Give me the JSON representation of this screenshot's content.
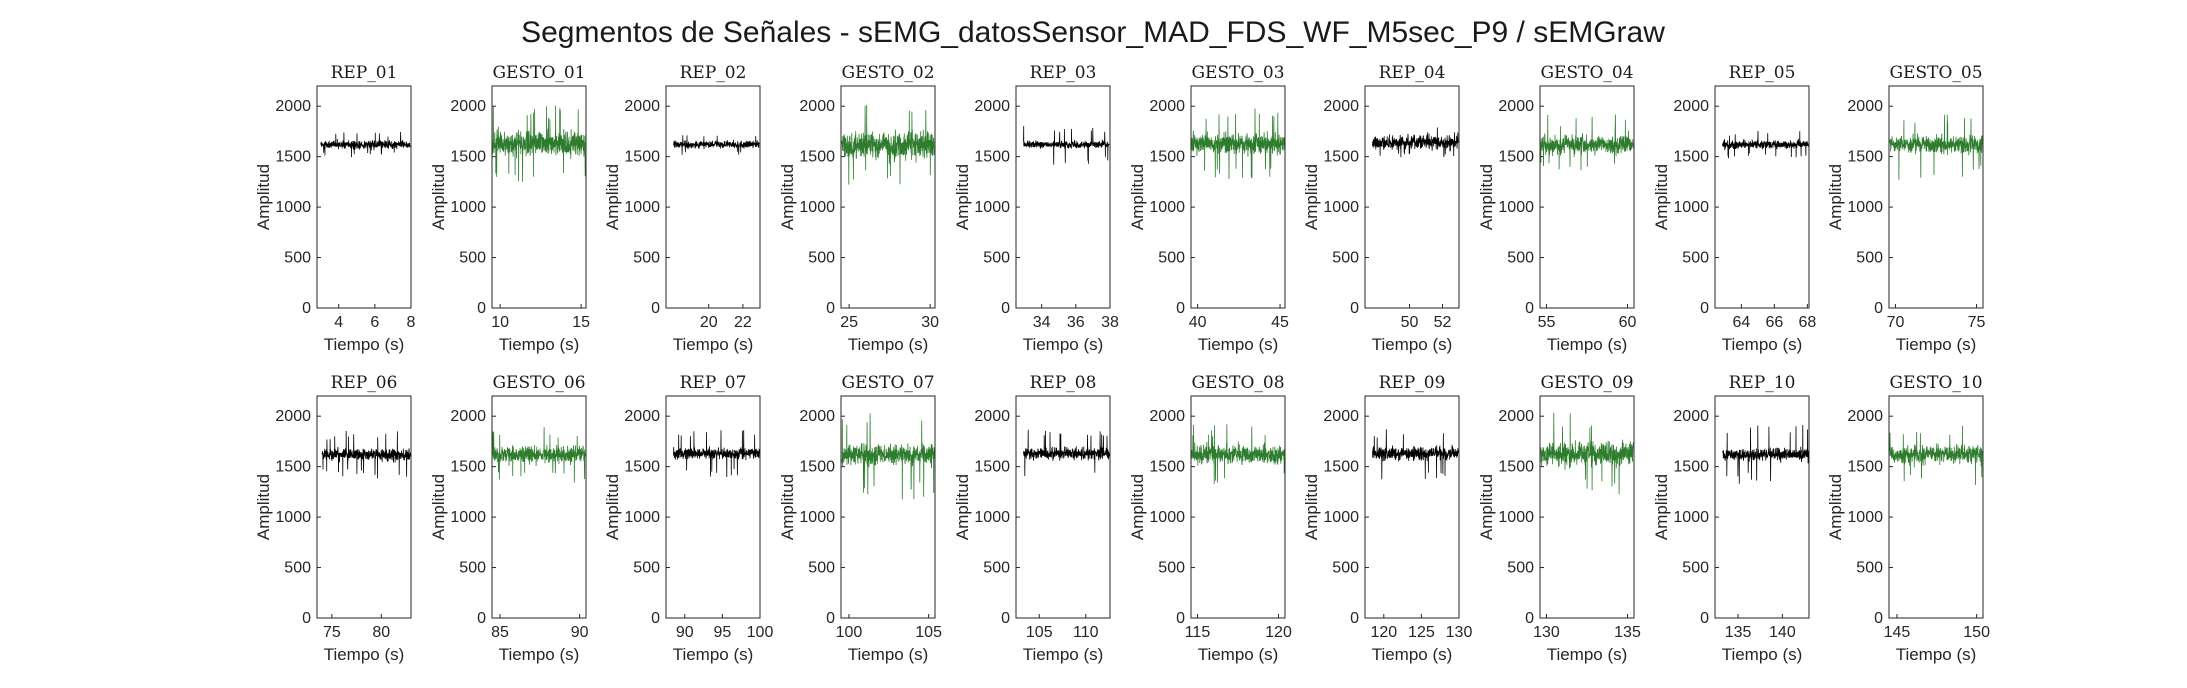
{
  "figure": {
    "title": "Segmentos de Señales - sEMG_datosSensor_MAD_FDS_WF_M5sec_P9 / sEMGraw"
  },
  "colors": {
    "rep": "#000000",
    "gesto": "#2e7d2e",
    "axis": "#262626"
  },
  "chart_data": [
    {
      "type": "line",
      "title": "REP_01",
      "kind": "rep",
      "xlim": [
        2.8,
        8
      ],
      "xticks": [
        4,
        6,
        8
      ],
      "ylim": [
        0,
        2200
      ],
      "yticks": [
        0,
        500,
        1000,
        1500,
        2000
      ],
      "xlabel": "Tiempo (s)",
      "ylabel": "Amplitud",
      "series": [
        {
          "center": 1620,
          "amp": 70,
          "spike": 130
        }
      ]
    },
    {
      "type": "line",
      "title": "GESTO_01",
      "kind": "gesto",
      "xlim": [
        9.5,
        15.3
      ],
      "xticks": [
        10,
        15
      ],
      "ylim": [
        0,
        2200
      ],
      "yticks": [
        0,
        500,
        1000,
        1500,
        2000
      ],
      "xlabel": "Tiempo (s)",
      "ylabel": "Amplitud",
      "series": [
        {
          "center": 1630,
          "amp": 200,
          "spike": 380
        }
      ]
    },
    {
      "type": "line",
      "title": "REP_02",
      "kind": "rep",
      "xlim": [
        17.5,
        23
      ],
      "xticks": [
        20,
        22
      ],
      "ylim": [
        0,
        2200
      ],
      "yticks": [
        0,
        500,
        1000,
        1500,
        2000
      ],
      "xlabel": "Tiempo (s)",
      "ylabel": "Amplitud",
      "series": [
        {
          "center": 1620,
          "amp": 60,
          "spike": 110
        }
      ]
    },
    {
      "type": "line",
      "title": "GESTO_02",
      "kind": "gesto",
      "xlim": [
        24.5,
        30.3
      ],
      "xticks": [
        25,
        30
      ],
      "ylim": [
        0,
        2200
      ],
      "yticks": [
        0,
        500,
        1000,
        1500,
        2000
      ],
      "xlabel": "Tiempo (s)",
      "ylabel": "Amplitud",
      "series": [
        {
          "center": 1620,
          "amp": 230,
          "spike": 400
        }
      ]
    },
    {
      "type": "line",
      "title": "REP_03",
      "kind": "rep",
      "xlim": [
        32.5,
        38
      ],
      "xticks": [
        34,
        36,
        38
      ],
      "ylim": [
        0,
        2200
      ],
      "yticks": [
        0,
        500,
        1000,
        1500,
        2000
      ],
      "xlabel": "Tiempo (s)",
      "ylabel": "Amplitud",
      "series": [
        {
          "center": 1620,
          "amp": 60,
          "spike": 200
        }
      ]
    },
    {
      "type": "line",
      "title": "GESTO_03",
      "kind": "gesto",
      "xlim": [
        39.6,
        45.3
      ],
      "xticks": [
        40,
        45
      ],
      "ylim": [
        0,
        2200
      ],
      "yticks": [
        0,
        500,
        1000,
        1500,
        2000
      ],
      "xlabel": "Tiempo (s)",
      "ylabel": "Amplitud",
      "series": [
        {
          "center": 1630,
          "amp": 160,
          "spike": 380
        }
      ]
    },
    {
      "type": "line",
      "title": "REP_04",
      "kind": "rep",
      "xlim": [
        47.3,
        53
      ],
      "xticks": [
        50,
        52
      ],
      "ylim": [
        0,
        2200
      ],
      "yticks": [
        0,
        500,
        1000,
        1500,
        2000
      ],
      "xlabel": "Tiempo (s)",
      "ylabel": "Amplitud",
      "series": [
        {
          "center": 1640,
          "amp": 110,
          "spike": 160
        }
      ]
    },
    {
      "type": "line",
      "title": "GESTO_04",
      "kind": "gesto",
      "xlim": [
        54.6,
        60.4
      ],
      "xticks": [
        55,
        60
      ],
      "ylim": [
        0,
        2200
      ],
      "yticks": [
        0,
        500,
        1000,
        1500,
        2000
      ],
      "xlabel": "Tiempo (s)",
      "ylabel": "Amplitud",
      "series": [
        {
          "center": 1620,
          "amp": 150,
          "spike": 300
        }
      ]
    },
    {
      "type": "line",
      "title": "REP_05",
      "kind": "rep",
      "xlim": [
        62.4,
        68.1
      ],
      "xticks": [
        64,
        66,
        68
      ],
      "ylim": [
        0,
        2200
      ],
      "yticks": [
        0,
        500,
        1000,
        1500,
        2000
      ],
      "xlabel": "Tiempo (s)",
      "ylabel": "Amplitud",
      "series": [
        {
          "center": 1620,
          "amp": 70,
          "spike": 140
        }
      ]
    },
    {
      "type": "line",
      "title": "GESTO_05",
      "kind": "gesto",
      "xlim": [
        69.6,
        75.4
      ],
      "xticks": [
        70,
        75
      ],
      "ylim": [
        0,
        2200
      ],
      "yticks": [
        0,
        500,
        1000,
        1500,
        2000
      ],
      "xlabel": "Tiempo (s)",
      "ylabel": "Amplitud",
      "series": [
        {
          "center": 1620,
          "amp": 140,
          "spike": 350
        }
      ]
    },
    {
      "type": "line",
      "title": "REP_06",
      "kind": "rep",
      "xlim": [
        73.5,
        83
      ],
      "xticks": [
        75,
        80
      ],
      "ylim": [
        0,
        2200
      ],
      "yticks": [
        0,
        500,
        1000,
        1500,
        2000
      ],
      "xlabel": "Tiempo (s)",
      "ylabel": "Amplitud",
      "series": [
        {
          "center": 1620,
          "amp": 100,
          "spike": 240
        }
      ]
    },
    {
      "type": "line",
      "title": "GESTO_06",
      "kind": "gesto",
      "xlim": [
        84.5,
        90.4
      ],
      "xticks": [
        85,
        90
      ],
      "ylim": [
        0,
        2200
      ],
      "yticks": [
        0,
        500,
        1000,
        1500,
        2000
      ],
      "xlabel": "Tiempo (s)",
      "ylabel": "Amplitud",
      "series": [
        {
          "center": 1620,
          "amp": 140,
          "spike": 280
        }
      ]
    },
    {
      "type": "line",
      "title": "REP_07",
      "kind": "rep",
      "xlim": [
        87.5,
        100
      ],
      "xticks": [
        90,
        95,
        100
      ],
      "ylim": [
        0,
        2200
      ],
      "yticks": [
        0,
        500,
        1000,
        1500,
        2000
      ],
      "xlabel": "Tiempo (s)",
      "ylabel": "Amplitud",
      "series": [
        {
          "center": 1630,
          "amp": 90,
          "spike": 250
        }
      ]
    },
    {
      "type": "line",
      "title": "GESTO_07",
      "kind": "gesto",
      "xlim": [
        99.5,
        105.4
      ],
      "xticks": [
        100,
        105
      ],
      "ylim": [
        0,
        2200
      ],
      "yticks": [
        0,
        500,
        1000,
        1500,
        2000
      ],
      "xlabel": "Tiempo (s)",
      "ylabel": "Amplitud",
      "series": [
        {
          "center": 1620,
          "amp": 170,
          "spike": 450
        }
      ]
    },
    {
      "type": "line",
      "title": "REP_08",
      "kind": "rep",
      "xlim": [
        102.5,
        112.6
      ],
      "xticks": [
        105,
        110
      ],
      "ylim": [
        0,
        2200
      ],
      "yticks": [
        0,
        500,
        1000,
        1500,
        2000
      ],
      "xlabel": "Tiempo (s)",
      "ylabel": "Amplitud",
      "series": [
        {
          "center": 1630,
          "amp": 100,
          "spike": 260
        }
      ]
    },
    {
      "type": "line",
      "title": "GESTO_08",
      "kind": "gesto",
      "xlim": [
        114.6,
        120.4
      ],
      "xticks": [
        115,
        120
      ],
      "ylim": [
        0,
        2200
      ],
      "yticks": [
        0,
        500,
        1000,
        1500,
        2000
      ],
      "xlabel": "Tiempo (s)",
      "ylabel": "Amplitud",
      "series": [
        {
          "center": 1620,
          "amp": 160,
          "spike": 300
        }
      ]
    },
    {
      "type": "line",
      "title": "REP_09",
      "kind": "rep",
      "xlim": [
        117.5,
        130
      ],
      "xticks": [
        120,
        125,
        130
      ],
      "ylim": [
        0,
        2200
      ],
      "yticks": [
        0,
        500,
        1000,
        1500,
        2000
      ],
      "xlabel": "Tiempo (s)",
      "ylabel": "Amplitud",
      "series": [
        {
          "center": 1630,
          "amp": 110,
          "spike": 260
        }
      ]
    },
    {
      "type": "line",
      "title": "GESTO_09",
      "kind": "gesto",
      "xlim": [
        129.6,
        135.4
      ],
      "xticks": [
        130,
        135
      ],
      "ylim": [
        0,
        2200
      ],
      "yticks": [
        0,
        500,
        1000,
        1500,
        2000
      ],
      "xlabel": "Tiempo (s)",
      "ylabel": "Amplitud",
      "series": [
        {
          "center": 1630,
          "amp": 200,
          "spike": 420
        }
      ]
    },
    {
      "type": "line",
      "title": "REP_10",
      "kind": "rep",
      "xlim": [
        132.4,
        143
      ],
      "xticks": [
        135,
        140
      ],
      "ylim": [
        0,
        2200
      ],
      "yticks": [
        0,
        500,
        1000,
        1500,
        2000
      ],
      "xlabel": "Tiempo (s)",
      "ylabel": "Amplitud",
      "series": [
        {
          "center": 1620,
          "amp": 100,
          "spike": 300
        }
      ]
    },
    {
      "type": "line",
      "title": "GESTO_10",
      "kind": "gesto",
      "xlim": [
        144.5,
        150.4
      ],
      "xticks": [
        145,
        150
      ],
      "ylim": [
        0,
        2200
      ],
      "yticks": [
        0,
        500,
        1000,
        1500,
        2000
      ],
      "xlabel": "Tiempo (s)",
      "ylabel": "Amplitud",
      "series": [
        {
          "center": 1620,
          "amp": 150,
          "spike": 320
        }
      ]
    }
  ]
}
